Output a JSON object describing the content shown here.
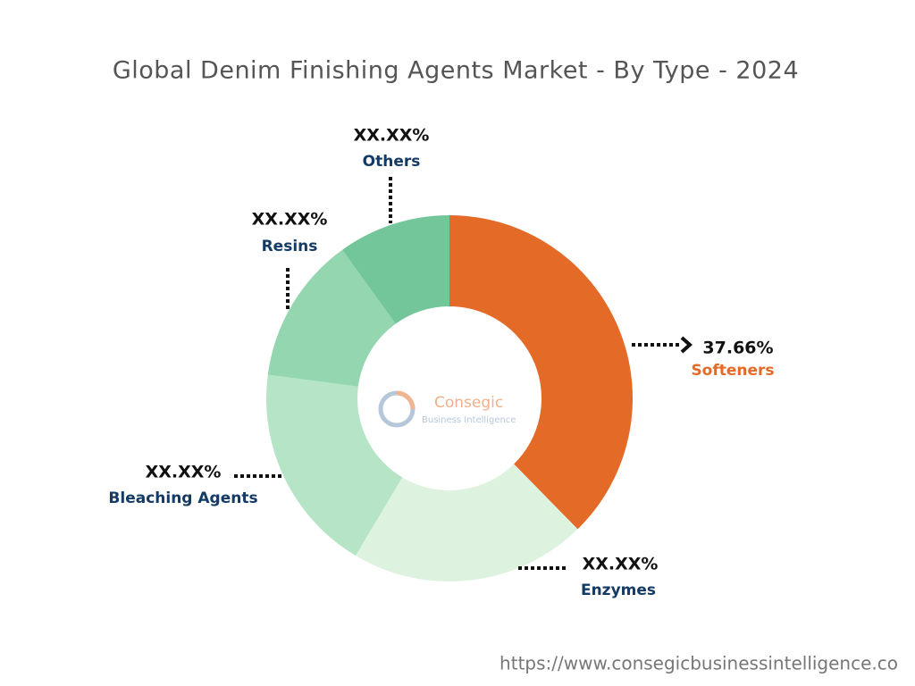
{
  "chart_data": {
    "type": "donut",
    "title": "Global Denim Finishing Agents Market - By Type - 2024",
    "categories": [
      "Softeners",
      "Enzymes",
      "Bleaching Agents",
      "Resins",
      "Others"
    ],
    "values": [
      37.66,
      20.9,
      18.5,
      13.0,
      9.94
    ],
    "value_labels": [
      "37.66%",
      "XX.XX%",
      "XX.XX%",
      "XX.XX%",
      "XX.XX%"
    ],
    "colors": [
      "#e46a27",
      "#ddf2df",
      "#b5e4c6",
      "#93d6b0",
      "#72c69a"
    ],
    "label_colors": [
      "#e46a27",
      "#143a66",
      "#143a66",
      "#143a66",
      "#143a66"
    ]
  },
  "watermark": {
    "name": "Consegic",
    "tagline": "Business Intelligence"
  },
  "footer": {
    "url": "https://www.consegicbusinessintelligence.co"
  }
}
